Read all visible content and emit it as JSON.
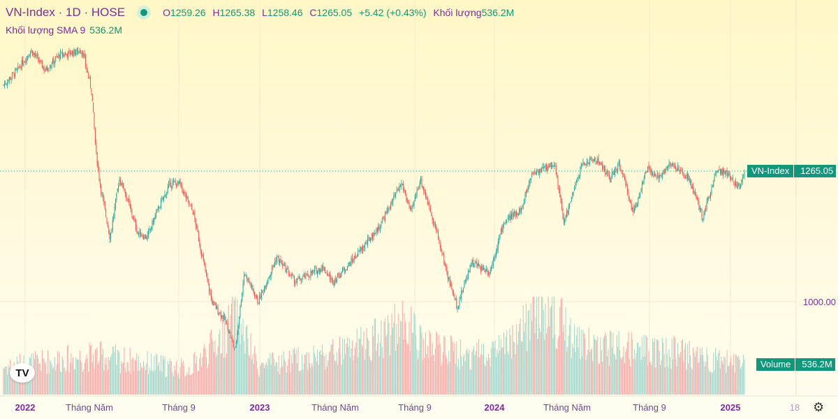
{
  "header": {
    "symbol": "VN-Index",
    "interval": "1D",
    "exchange": "HOSE",
    "sep": "·",
    "open_label": "O",
    "open": "1259.26",
    "high_label": "H",
    "high": "1265.38",
    "low_label": "L",
    "low": "1258.46",
    "close_label": "C",
    "close": "1265.05",
    "change": "+5.42 (+0.43%)",
    "volume_label": "Khối lượng",
    "volume": "536.2M"
  },
  "sma": {
    "label": "Khối lượng SMA 9",
    "value": "536.2M"
  },
  "price_tag": {
    "name": "VN-Index",
    "value": "1265.05"
  },
  "volume_tag": {
    "name": "Volume",
    "value": "536.2M"
  },
  "y_axis": {
    "label_1000": "1000.00"
  },
  "x_axis": [
    "2022",
    "Tháng Năm",
    "Tháng 9",
    "2023",
    "Tháng Năm",
    "Tháng 9",
    "2024",
    "Tháng Năm",
    "Tháng 9",
    "2025",
    "18"
  ],
  "logo": "TV",
  "colors": {
    "up": "#26a69a",
    "down": "#ef5350",
    "accent": "#12967c",
    "text": "#7b2b9e"
  },
  "chart_data": {
    "type": "candlestick",
    "title": "VN-Index · 1D · HOSE",
    "price_ylim": [
      875,
      1527
    ],
    "last_close": 1265.05,
    "close_anchors_by_week": [
      [
        0,
        1440
      ],
      [
        3,
        1470
      ],
      [
        6,
        1510
      ],
      [
        9,
        1470
      ],
      [
        12,
        1500
      ],
      [
        17,
        1510
      ],
      [
        19,
        1430
      ],
      [
        20,
        1300
      ],
      [
        21,
        1230
      ],
      [
        23,
        1130
      ],
      [
        25,
        1250
      ],
      [
        26,
        1230
      ],
      [
        29,
        1140
      ],
      [
        31,
        1130
      ],
      [
        33,
        1180
      ],
      [
        36,
        1240
      ],
      [
        38,
        1240
      ],
      [
        41,
        1180
      ],
      [
        43,
        1088
      ],
      [
        45,
        1000
      ],
      [
        48,
        960
      ],
      [
        50,
        900
      ],
      [
        52,
        1060
      ],
      [
        55,
        1000
      ],
      [
        59,
        1090
      ],
      [
        63,
        1040
      ],
      [
        69,
        1070
      ],
      [
        71,
        1040
      ],
      [
        75,
        1080
      ],
      [
        81,
        1150
      ],
      [
        86,
        1240
      ],
      [
        88,
        1180
      ],
      [
        90,
        1250
      ],
      [
        93,
        1160
      ],
      [
        96,
        1050
      ],
      [
        98,
        990
      ],
      [
        101,
        1080
      ],
      [
        105,
        1060
      ],
      [
        108,
        1160
      ],
      [
        112,
        1190
      ],
      [
        114,
        1260
      ],
      [
        119,
        1280
      ],
      [
        121,
        1160
      ],
      [
        125,
        1280
      ],
      [
        128,
        1290
      ],
      [
        131,
        1250
      ],
      [
        133,
        1280
      ],
      [
        136,
        1180
      ],
      [
        139,
        1270
      ],
      [
        141,
        1250
      ],
      [
        144,
        1280
      ],
      [
        148,
        1250
      ],
      [
        151,
        1170
      ],
      [
        154,
        1270
      ],
      [
        156,
        1260
      ],
      [
        159,
        1230
      ],
      [
        160,
        1265.05
      ]
    ],
    "volume_anchors_by_week_m": [
      [
        0,
        500
      ],
      [
        20,
        700
      ],
      [
        40,
        450
      ],
      [
        48,
        1100
      ],
      [
        50,
        1400
      ],
      [
        55,
        500
      ],
      [
        75,
        800
      ],
      [
        87,
        1300
      ],
      [
        90,
        900
      ],
      [
        100,
        700
      ],
      [
        110,
        900
      ],
      [
        116,
        1600
      ],
      [
        125,
        900
      ],
      [
        140,
        800
      ],
      [
        150,
        700
      ],
      [
        160,
        536.2
      ]
    ]
  }
}
